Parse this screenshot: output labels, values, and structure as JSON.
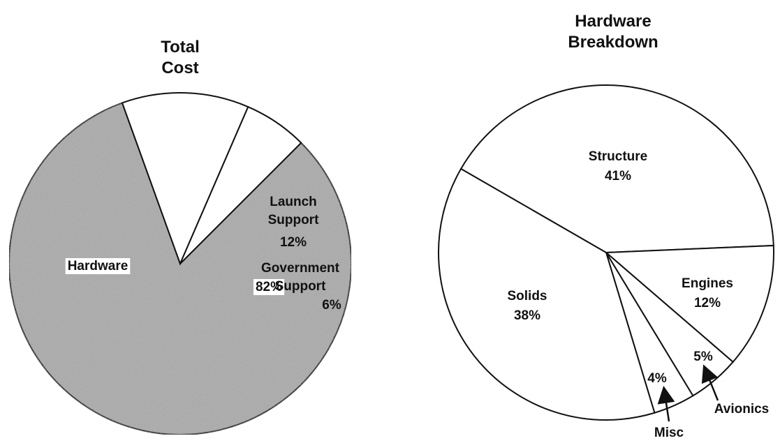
{
  "chart_data": [
    {
      "type": "pie",
      "title": "Total Cost",
      "categories": [
        "Hardware",
        "Launch Support",
        "Government Support"
      ],
      "values": [
        82,
        12,
        6
      ],
      "value_labels": [
        "82%",
        "12%",
        "6%"
      ],
      "colors": [
        "#b4b4b4",
        "#ffffff",
        "#ffffff"
      ]
    },
    {
      "type": "pie",
      "title": "Hardware Breakdown",
      "categories": [
        "Structure",
        "Engines",
        "Avionics",
        "Misc",
        "Solids"
      ],
      "values": [
        41,
        12,
        5,
        4,
        38
      ],
      "value_labels": [
        "41%",
        "12%",
        "5%",
        "4%",
        "38%"
      ],
      "colors": [
        "#ffffff",
        "#ffffff",
        "#ffffff",
        "#ffffff",
        "#ffffff"
      ]
    }
  ]
}
